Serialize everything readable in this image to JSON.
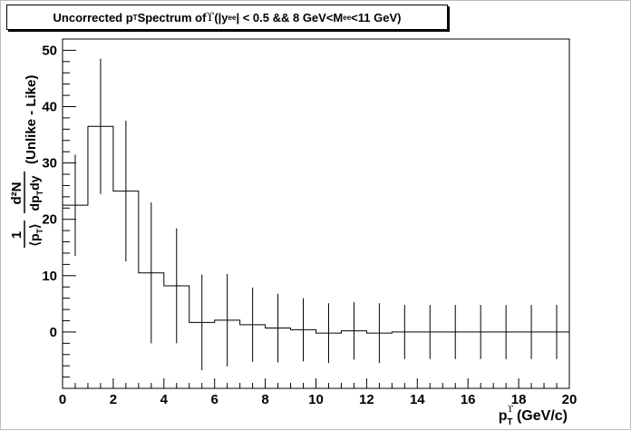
{
  "chart_data": {
    "type": "histogram",
    "title": {
      "prefix": "Uncorrected p",
      "prefix_sub": "T",
      "mid": " Spectrum of ",
      "upsilon": "ϒ",
      "cut_open": " (|y",
      "cut_sub1": "ee",
      "cut_mid": "| < 0.5 && 8 GeV<M",
      "cut_sub2": "ee",
      "cut_close": "<11 GeV)"
    },
    "xlabel": {
      "main": "p",
      "sub": "T",
      "sup": "ϒ",
      "unit": " (GeV/c)"
    },
    "ylabel": {
      "numer": "d²N",
      "denom_main": "dp",
      "denom_sub": "T",
      "denom_end": "dy",
      "prefactor_num": "1",
      "prefactor_den": "⟨p",
      "prefactor_den_sub": "T",
      "prefactor_den_end": "⟩",
      "suffix": "(Unlike - Like)"
    },
    "xlim": [
      0,
      20
    ],
    "ylim": [
      -10,
      52
    ],
    "x_ticks": [
      "0",
      "2",
      "4",
      "6",
      "8",
      "10",
      "12",
      "14",
      "16",
      "18",
      "20"
    ],
    "y_ticks": [
      "0",
      "10",
      "20",
      "30",
      "40",
      "50"
    ],
    "bin_width": 1,
    "bins": [
      {
        "lo": 0,
        "hi": 1,
        "y": 22.5,
        "err": 9.0
      },
      {
        "lo": 1,
        "hi": 2,
        "y": 36.5,
        "err": 12.0
      },
      {
        "lo": 2,
        "hi": 3,
        "y": 25.0,
        "err": 12.5
      },
      {
        "lo": 3,
        "hi": 4,
        "y": 10.5,
        "err": 12.5
      },
      {
        "lo": 4,
        "hi": 5,
        "y": 8.2,
        "err": 10.2
      },
      {
        "lo": 5,
        "hi": 6,
        "y": 1.7,
        "err": 8.5
      },
      {
        "lo": 6,
        "hi": 7,
        "y": 2.1,
        "err": 8.2
      },
      {
        "lo": 7,
        "hi": 8,
        "y": 1.3,
        "err": 6.6
      },
      {
        "lo": 8,
        "hi": 9,
        "y": 0.7,
        "err": 6.1
      },
      {
        "lo": 9,
        "hi": 10,
        "y": 0.4,
        "err": 5.6
      },
      {
        "lo": 10,
        "hi": 11,
        "y": -0.2,
        "err": 5.3
      },
      {
        "lo": 11,
        "hi": 12,
        "y": 0.2,
        "err": 5.1
      },
      {
        "lo": 12,
        "hi": 13,
        "y": -0.2,
        "err": 5.3
      },
      {
        "lo": 13,
        "hi": 14,
        "y": 0.0,
        "err": 4.8
      },
      {
        "lo": 14,
        "hi": 15,
        "y": 0.0,
        "err": 4.8
      },
      {
        "lo": 15,
        "hi": 16,
        "y": 0.0,
        "err": 4.8
      },
      {
        "lo": 16,
        "hi": 17,
        "y": 0.0,
        "err": 4.8
      },
      {
        "lo": 17,
        "hi": 18,
        "y": 0.0,
        "err": 4.8
      },
      {
        "lo": 18,
        "hi": 19,
        "y": 0.0,
        "err": 4.8
      },
      {
        "lo": 19,
        "hi": 20,
        "y": 0.0,
        "err": 4.8
      }
    ],
    "grid": false,
    "legend": "none",
    "line_color": "#000000",
    "background_color": "#ffffff"
  }
}
